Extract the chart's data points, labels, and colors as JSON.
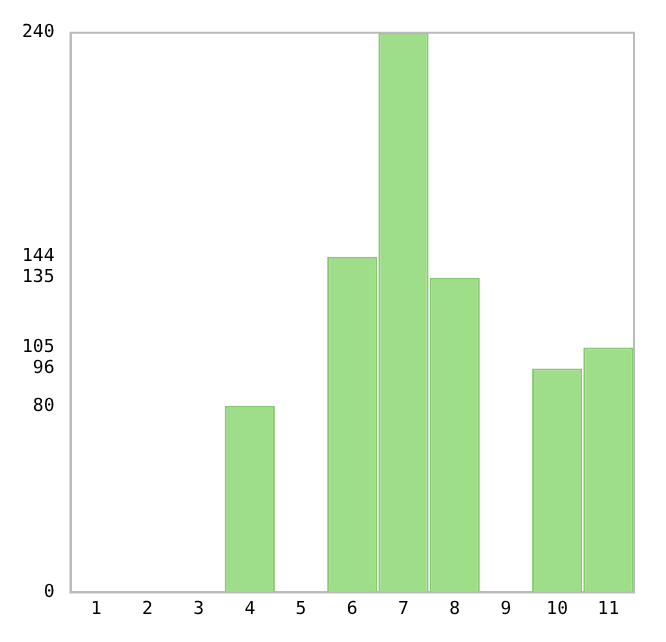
{
  "chart_data": {
    "type": "bar",
    "categories": [
      "1",
      "2",
      "3",
      "4",
      "5",
      "6",
      "7",
      "8",
      "9",
      "10",
      "11"
    ],
    "values": [
      0,
      0,
      0,
      80,
      0,
      144,
      240,
      135,
      0,
      96,
      105
    ],
    "color": "#9ede88",
    "ylim": [
      0,
      240
    ],
    "yticks": [
      0,
      80,
      96,
      105,
      135,
      144,
      240
    ],
    "grid": false,
    "legend": false
  }
}
